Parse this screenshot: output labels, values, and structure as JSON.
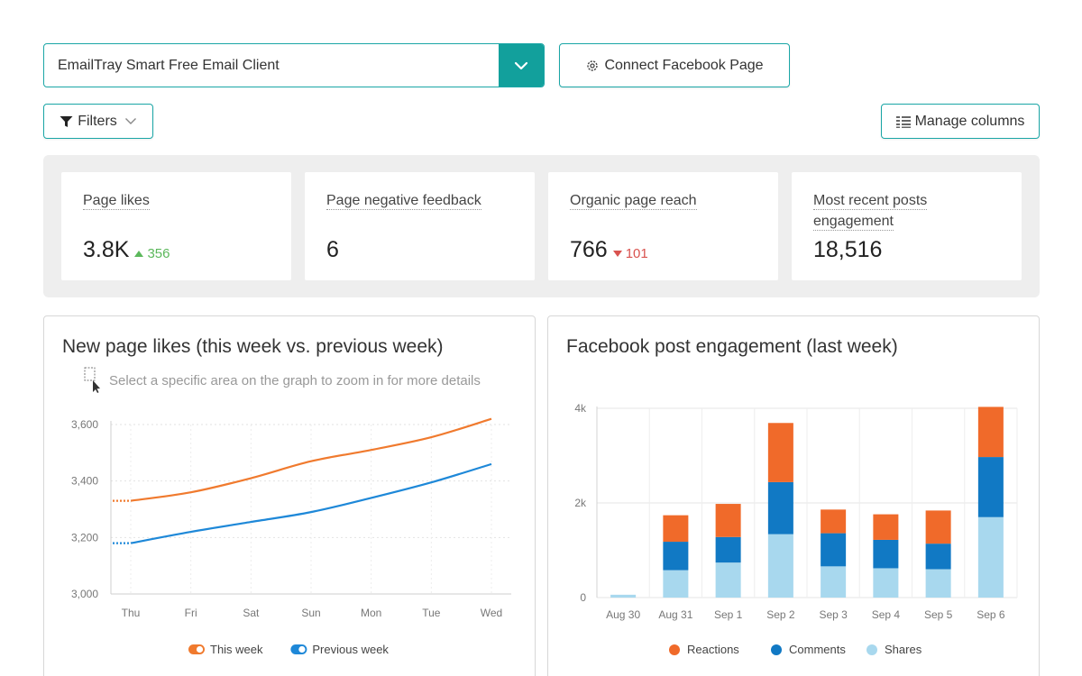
{
  "header": {
    "page_select_value": "EmailTray Smart Free Email Client",
    "connect_label": "Connect Facebook Page",
    "filters_label": "Filters",
    "manage_columns_label": "Manage columns"
  },
  "kpis": [
    {
      "label": "Page likes",
      "value": "3.8K",
      "delta": "356",
      "direction": "up"
    },
    {
      "label": "Page negative feedback",
      "value": "6",
      "delta": "",
      "direction": ""
    },
    {
      "label": "Organic page reach",
      "value": "766",
      "delta": "101",
      "direction": "down"
    },
    {
      "label": "Most recent posts engagement",
      "value": "18,516",
      "delta": "",
      "direction": ""
    }
  ],
  "left_panel": {
    "title": "New page likes (this week vs. previous week)",
    "zoom_hint": "Select a specific area on the graph to zoom in for more details"
  },
  "right_panel": {
    "title": "Facebook post engagement (last week)"
  },
  "chart_data": [
    {
      "type": "line",
      "title": "New page likes (this week vs. previous week)",
      "categories": [
        "Thu",
        "Fri",
        "Sat",
        "Sun",
        "Mon",
        "Tue",
        "Wed"
      ],
      "ylim": [
        3000,
        3600
      ],
      "yticks": [
        "3,600",
        "3,400",
        "3,200",
        "3,000"
      ],
      "ytick_values": [
        3600,
        3400,
        3200,
        3000
      ],
      "grid": true,
      "legend": "bottom",
      "series": [
        {
          "name": "This week",
          "color": "#f07a2e",
          "values": [
            3330,
            3360,
            3410,
            3470,
            3510,
            3555,
            3620
          ]
        },
        {
          "name": "Previous week",
          "color": "#1e88d8",
          "values": [
            3180,
            3220,
            3255,
            3290,
            3340,
            3395,
            3460
          ]
        }
      ]
    },
    {
      "type": "bar",
      "stacked": true,
      "title": "Facebook post engagement (last week)",
      "categories": [
        "Aug 30",
        "Aug 31",
        "Sep 1",
        "Sep 2",
        "Sep 3",
        "Sep 4",
        "Sep 5",
        "Sep 6"
      ],
      "ylim": [
        0,
        4000
      ],
      "yticks": [
        "4k",
        "2k",
        "0"
      ],
      "ytick_values": [
        4000,
        2000,
        0
      ],
      "grid": true,
      "legend": "bottom",
      "series": [
        {
          "name": "Shares",
          "color": "#a8d8ee",
          "values": [
            60,
            580,
            740,
            1340,
            660,
            620,
            600,
            1700
          ]
        },
        {
          "name": "Comments",
          "color": "#1179c4",
          "values": [
            0,
            600,
            540,
            1100,
            700,
            600,
            540,
            1270
          ]
        },
        {
          "name": "Reactions",
          "color": "#f06a2a",
          "values": [
            0,
            560,
            700,
            1250,
            500,
            540,
            700,
            1060
          ]
        }
      ],
      "legend_order": [
        "Reactions",
        "Comments",
        "Shares"
      ]
    }
  ]
}
